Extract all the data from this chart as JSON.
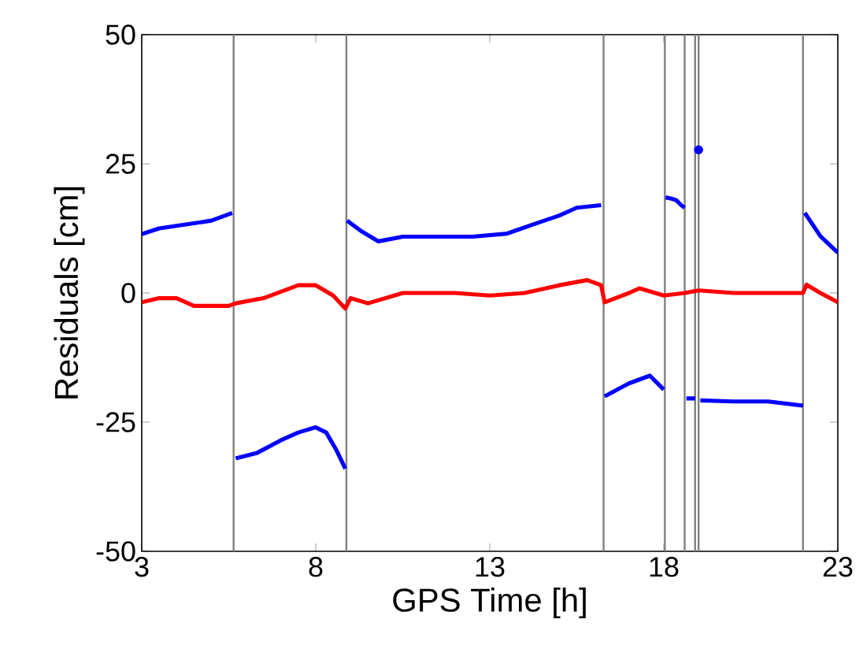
{
  "chart_data": {
    "type": "line",
    "xlabel": "GPS Time [h]",
    "ylabel": "Residuals [cm]",
    "xlim": [
      3,
      23
    ],
    "xticks": [
      3,
      8,
      13,
      18,
      23
    ],
    "ylim": [
      -50,
      50
    ],
    "yticks": [
      -50,
      -25,
      0,
      25,
      50
    ],
    "series": [
      {
        "color": "#0000ff",
        "x": [
          3,
          3.5,
          4,
          4.5,
          5,
          5.6,
          5.65,
          5.7,
          6.3,
          7,
          7.5,
          8,
          8.3,
          8.6,
          8.85,
          8.87,
          8.9,
          9.3,
          9.8,
          10.5,
          11.5,
          12.5,
          13.5,
          14.3,
          15,
          15.5,
          16.2,
          16.25,
          16.3,
          17,
          17.6,
          18.0,
          18.03,
          18.65,
          18.9,
          18.95,
          19.05,
          20,
          21,
          22.0,
          22.02,
          22.05,
          22.5,
          23
        ],
        "values": [
          11.4,
          12.5,
          13,
          13.5,
          14,
          15.5,
          null,
          -32,
          -31,
          -28.5,
          -27,
          -26,
          -27,
          -30.5,
          -34,
          null,
          14,
          12,
          10,
          10.9,
          10.9,
          10.9,
          11.5,
          13.4,
          15,
          16.5,
          17,
          null,
          -20,
          -17.5,
          -16,
          -18.7,
          null,
          -20.4,
          -20.4,
          null,
          -20.8,
          -21,
          -21,
          -21.8,
          null,
          15.5,
          11,
          7.8
        ]
      },
      {
        "color": "#0000ff",
        "x": [
          18.05,
          18.2,
          18.35,
          18.5,
          18.6
        ],
        "values": [
          18.5,
          18.3,
          18,
          17,
          16.5
        ]
      },
      {
        "type": "scatter",
        "marker": "circle",
        "color": "#0000ff",
        "x": [
          19.0
        ],
        "values": [
          27.7
        ]
      },
      {
        "color": "#ff0000",
        "x": [
          3,
          3.5,
          4,
          4.5,
          5.5,
          5.7,
          6.5,
          7.5,
          8,
          8.5,
          8.85,
          9,
          9.5,
          10.5,
          12,
          13,
          14,
          15,
          15.8,
          16.2,
          16.3,
          17,
          17.3,
          18,
          18.6,
          19,
          20,
          21,
          22,
          22.1,
          22.5,
          23
        ],
        "values": [
          -1.8,
          -1,
          -1,
          -2.5,
          -2.5,
          -2,
          -1,
          1.5,
          1.5,
          -0.5,
          -3,
          -1,
          -2,
          0,
          0,
          -0.5,
          0,
          1.5,
          2.5,
          1.5,
          -1.8,
          0,
          0.9,
          -0.5,
          0,
          0.5,
          0,
          0,
          0,
          1.6,
          0,
          -1.8
        ]
      }
    ],
    "ref_lines": [
      {
        "axis": "x",
        "value": 5.64,
        "color": "#808080"
      },
      {
        "axis": "x",
        "value": 8.88,
        "color": "#808080"
      },
      {
        "axis": "x",
        "value": 16.27,
        "color": "#808080"
      },
      {
        "axis": "x",
        "value": 18.03,
        "color": "#808080"
      },
      {
        "axis": "x",
        "value": 18.6,
        "color": "#808080"
      },
      {
        "axis": "x",
        "value": 18.9,
        "color": "#808080"
      },
      {
        "axis": "x",
        "value": 19.0,
        "color": "#808080"
      },
      {
        "axis": "x",
        "value": 22.0,
        "color": "#808080"
      }
    ]
  }
}
